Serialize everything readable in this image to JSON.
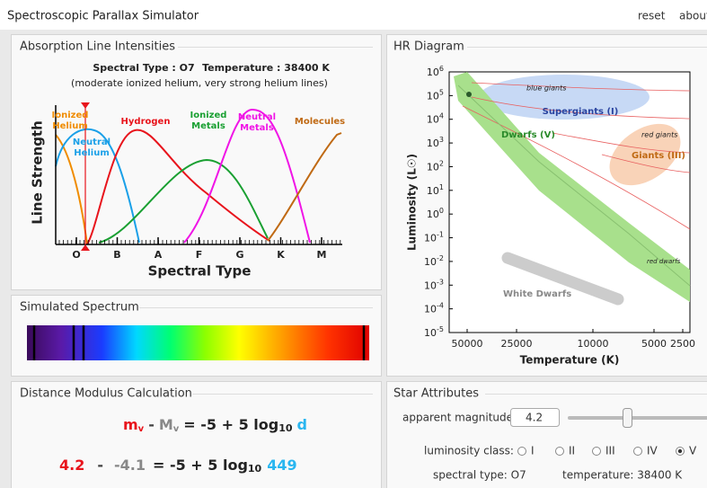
{
  "header": {
    "title": "Spectroscopic Parallax Simulator",
    "links": [
      "reset",
      "about"
    ]
  },
  "absorption": {
    "title": "Absorption Line Intensities",
    "spectral_label": "Spectral Type : O7",
    "temperature_label": "Temperature : 38400 K",
    "description": "(moderate ionized helium, very strong helium lines)",
    "y_label": "Line Strength",
    "x_label": "Spectral Type",
    "x_ticks": [
      "O",
      "B",
      "A",
      "F",
      "G",
      "K",
      "M"
    ],
    "lines": [
      {
        "name": [
          "Ionized",
          "Helium"
        ]
      },
      {
        "name": [
          "Neutral",
          "Helium"
        ]
      },
      {
        "name": [
          "Hydrogen"
        ]
      },
      {
        "name": [
          "Ionized",
          "Metals"
        ]
      },
      {
        "name": [
          "Neutral",
          "Metals"
        ]
      },
      {
        "name": [
          "Molecules"
        ]
      }
    ]
  },
  "hr": {
    "title": "HR Diagram",
    "y_label": "Luminosity (L☉)",
    "x_label": "Temperature (K)",
    "y_ticks": [
      {
        "base": "10",
        "exp": "6"
      },
      {
        "base": "10",
        "exp": "5"
      },
      {
        "base": "10",
        "exp": "4"
      },
      {
        "base": "10",
        "exp": "3"
      },
      {
        "base": "10",
        "exp": "2"
      },
      {
        "base": "10",
        "exp": "1"
      },
      {
        "base": "10",
        "exp": "0"
      },
      {
        "base": "10",
        "exp": "-1"
      },
      {
        "base": "10",
        "exp": "-2"
      },
      {
        "base": "10",
        "exp": "-3"
      },
      {
        "base": "10",
        "exp": "-4"
      },
      {
        "base": "10",
        "exp": "-5"
      }
    ],
    "x_ticks": [
      50000,
      25000,
      10000,
      5000,
      2500
    ],
    "regions": [
      "blue giants",
      "Supergiants (I)",
      "Dwarfs (V)",
      "red giants",
      "Giants (III)",
      "red dwarfs",
      "White Dwarfs"
    ]
  },
  "spectrum": {
    "title": "Simulated Spectrum"
  },
  "distance": {
    "title": "Distance Modulus Calculation",
    "formula": {
      "m": "m",
      "m_sub": "v",
      "minus": "-",
      "M": "M",
      "M_sub": "v",
      "rhs": "= -5 + 5 log",
      "log_base": "10",
      "d": "d"
    },
    "calc": {
      "apparent": 4.2,
      "minus": "-",
      "absolute": -4.1,
      "rhs": "= -5 + 5 log",
      "log_base": "10",
      "distance": 449
    }
  },
  "attributes": {
    "title": "Star Attributes",
    "magnitude_label": "apparent magnitude:",
    "magnitude": 4.2,
    "class_label": "luminosity class:",
    "classes": [
      "I",
      "II",
      "III",
      "IV",
      "V"
    ],
    "selected_class": 4,
    "spectral_type": "spectral type:  O7",
    "temperature": "temperature:  38400 K"
  }
}
